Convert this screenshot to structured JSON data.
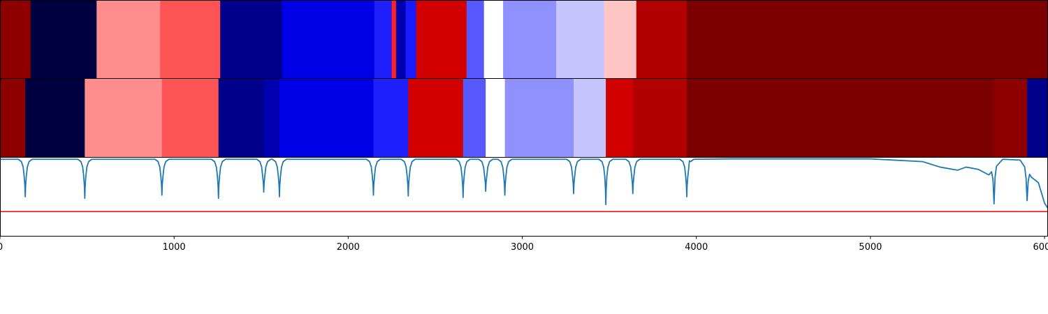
{
  "chart_data": [
    {
      "type": "heatmap",
      "name": "segmentation-track-1",
      "colormap": "seismic",
      "xlim": [
        0,
        6020
      ],
      "segments": [
        {
          "start": 0,
          "end": 175,
          "color": "#8e0000"
        },
        {
          "start": 175,
          "end": 555,
          "color": "#000040"
        },
        {
          "start": 555,
          "end": 920,
          "color": "#ff8d8d"
        },
        {
          "start": 920,
          "end": 1265,
          "color": "#ff5454"
        },
        {
          "start": 1265,
          "end": 1620,
          "color": "#00008d"
        },
        {
          "start": 1620,
          "end": 2150,
          "color": "#0000e6"
        },
        {
          "start": 2150,
          "end": 2250,
          "color": "#2020ff"
        },
        {
          "start": 2250,
          "end": 2275,
          "color": "#ff2020"
        },
        {
          "start": 2275,
          "end": 2330,
          "color": "#0000b0"
        },
        {
          "start": 2330,
          "end": 2390,
          "color": "#1a1aff"
        },
        {
          "start": 2390,
          "end": 2680,
          "color": "#d20000"
        },
        {
          "start": 2680,
          "end": 2780,
          "color": "#5858ff"
        },
        {
          "start": 2780,
          "end": 2890,
          "color": "#ffffff"
        },
        {
          "start": 2890,
          "end": 3195,
          "color": "#9090ff"
        },
        {
          "start": 3195,
          "end": 3470,
          "color": "#c5c5ff"
        },
        {
          "start": 3470,
          "end": 3655,
          "color": "#ffc5c5"
        },
        {
          "start": 3655,
          "end": 3945,
          "color": "#b20000"
        },
        {
          "start": 3945,
          "end": 6020,
          "color": "#7c0000"
        }
      ]
    },
    {
      "type": "heatmap",
      "name": "segmentation-track-2",
      "colormap": "seismic",
      "xlim": [
        0,
        6020
      ],
      "segments": [
        {
          "start": 0,
          "end": 145,
          "color": "#8e0000"
        },
        {
          "start": 145,
          "end": 487,
          "color": "#000040"
        },
        {
          "start": 487,
          "end": 930,
          "color": "#ff8d8d"
        },
        {
          "start": 930,
          "end": 1255,
          "color": "#ff5454"
        },
        {
          "start": 1255,
          "end": 1515,
          "color": "#00008d"
        },
        {
          "start": 1515,
          "end": 1605,
          "color": "#0000b0"
        },
        {
          "start": 1605,
          "end": 2145,
          "color": "#0000e6"
        },
        {
          "start": 2145,
          "end": 2345,
          "color": "#2020ff"
        },
        {
          "start": 2345,
          "end": 2660,
          "color": "#d20000"
        },
        {
          "start": 2660,
          "end": 2790,
          "color": "#5858ff"
        },
        {
          "start": 2790,
          "end": 2900,
          "color": "#ffffff"
        },
        {
          "start": 2900,
          "end": 3295,
          "color": "#9090ff"
        },
        {
          "start": 3295,
          "end": 3480,
          "color": "#c5c5ff"
        },
        {
          "start": 3480,
          "end": 3635,
          "color": "#d20000"
        },
        {
          "start": 3635,
          "end": 3945,
          "color": "#b20000"
        },
        {
          "start": 3945,
          "end": 5710,
          "color": "#7c0000"
        },
        {
          "start": 5710,
          "end": 5900,
          "color": "#8e0000"
        },
        {
          "start": 5900,
          "end": 6020,
          "color": "#00008d"
        }
      ]
    },
    {
      "type": "line",
      "name": "novelty-curve",
      "xlim": [
        0,
        6020
      ],
      "ylim": [
        0,
        1
      ],
      "xticks": [
        0,
        1000,
        2000,
        3000,
        4000,
        5000,
        6000
      ],
      "xticklabels": [
        "0",
        "1000",
        "2000",
        "3000",
        "4000",
        "5000",
        "6000"
      ],
      "series": [
        {
          "color": "#1f77b4",
          "baseline": 0.98,
          "dips": [
            {
              "x": 145,
              "y": 0.5
            },
            {
              "x": 487,
              "y": 0.48
            },
            {
              "x": 930,
              "y": 0.52
            },
            {
              "x": 1255,
              "y": 0.48
            },
            {
              "x": 1515,
              "y": 0.56
            },
            {
              "x": 1605,
              "y": 0.5
            },
            {
              "x": 2145,
              "y": 0.52
            },
            {
              "x": 2345,
              "y": 0.51
            },
            {
              "x": 2660,
              "y": 0.49
            },
            {
              "x": 2790,
              "y": 0.57
            },
            {
              "x": 2900,
              "y": 0.52
            },
            {
              "x": 3295,
              "y": 0.54
            },
            {
              "x": 3480,
              "y": 0.4
            },
            {
              "x": 3635,
              "y": 0.54
            },
            {
              "x": 3945,
              "y": 0.5
            },
            {
              "x": 5710,
              "y": 0.41
            },
            {
              "x": 5900,
              "y": 0.45
            }
          ],
          "tail": [
            {
              "x": 3960,
              "y": 0.96
            },
            {
              "x": 4200,
              "y": 0.985
            },
            {
              "x": 5000,
              "y": 0.985
            },
            {
              "x": 5300,
              "y": 0.95
            },
            {
              "x": 5400,
              "y": 0.88
            },
            {
              "x": 5500,
              "y": 0.84
            },
            {
              "x": 5550,
              "y": 0.88
            },
            {
              "x": 5620,
              "y": 0.85
            },
            {
              "x": 5680,
              "y": 0.78
            },
            {
              "x": 5760,
              "y": 0.98
            },
            {
              "x": 5860,
              "y": 0.97
            },
            {
              "x": 5925,
              "y": 0.75
            },
            {
              "x": 5965,
              "y": 0.68
            },
            {
              "x": 6000,
              "y": 0.42
            },
            {
              "x": 6020,
              "y": 0.35
            }
          ]
        },
        {
          "color": "#ff0000",
          "constant": 0.31
        }
      ]
    }
  ]
}
